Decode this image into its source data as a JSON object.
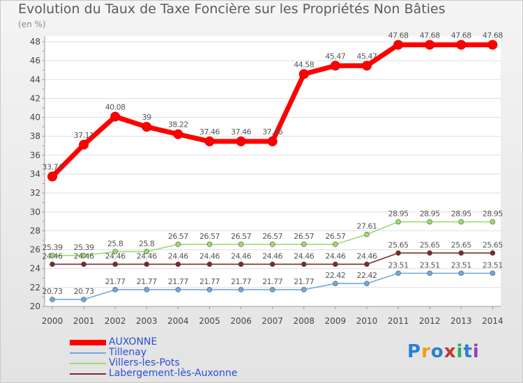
{
  "chart_data": {
    "type": "line",
    "title": "Evolution du Taux de Taxe Foncière sur les Propriétés Non Bâties",
    "ylabel": "(en %)",
    "xlabel": "",
    "ylim": [
      20,
      48
    ],
    "yticks": [
      20,
      22,
      24,
      26,
      28,
      30,
      32,
      34,
      36,
      38,
      40,
      42,
      44,
      46,
      48
    ],
    "categories": [
      "2000",
      "2001",
      "2002",
      "2003",
      "2004",
      "2005",
      "2006",
      "2007",
      "2008",
      "2009",
      "2010",
      "2011",
      "2012",
      "2013",
      "2014"
    ],
    "series": [
      {
        "name": "AUXONNE",
        "color": "#ff0000",
        "values": [
          33.74,
          37.11,
          40.08,
          39,
          38.22,
          37.46,
          37.46,
          37.46,
          44.58,
          45.47,
          45.47,
          47.68,
          47.68,
          47.68,
          47.68
        ],
        "labels": [
          "33.74",
          "37.11",
          "40.08",
          "39",
          "38.22",
          "37.46",
          "37.46",
          "37.46",
          "44.58",
          "45.47",
          "45.47",
          "47.68",
          "47.68",
          "47.68",
          "47.68"
        ]
      },
      {
        "name": "Tillenay",
        "color": "#6fa8dc",
        "values": [
          20.73,
          20.73,
          21.77,
          21.77,
          21.77,
          21.77,
          21.77,
          21.77,
          21.77,
          22.42,
          22.42,
          23.51,
          23.51,
          23.51,
          23.51
        ],
        "labels": [
          "20.73",
          "20.73",
          "21.77",
          "21.77",
          "21.77",
          "21.77",
          "21.77",
          "21.77",
          "21.77",
          "22.42",
          "22.42",
          "23.51",
          "23.51",
          "23.51",
          "23.51"
        ]
      },
      {
        "name": "Villers-les-Pots",
        "color": "#9bdc6a",
        "values": [
          25.39,
          25.39,
          25.8,
          25.8,
          26.57,
          26.57,
          26.57,
          26.57,
          26.57,
          26.57,
          27.61,
          28.95,
          28.95,
          28.95,
          28.95
        ],
        "labels": [
          "25.39",
          "25.39",
          "25.8",
          "25.8",
          "26.57",
          "26.57",
          "26.57",
          "26.57",
          "26.57",
          "26.57",
          "27.61",
          "28.95",
          "28.95",
          "28.95",
          "28.95"
        ]
      },
      {
        "name": "Labergement-lès-Auxonne",
        "color": "#7a2a2a",
        "values": [
          24.46,
          24.46,
          24.46,
          24.46,
          24.46,
          24.46,
          24.46,
          24.46,
          24.46,
          24.46,
          24.46,
          25.65,
          25.65,
          25.65,
          25.65
        ],
        "labels": [
          "24.46",
          "24.46",
          "24.46",
          "24.46",
          "24.46",
          "24.46",
          "24.46",
          "24.46",
          "24.46",
          "24.46",
          "24.46",
          "25.65",
          "25.65",
          "25.65",
          "25.65"
        ]
      }
    ]
  },
  "logo": {
    "text": "Proxiti",
    "letters": [
      "P",
      "r",
      "o",
      "x",
      "i",
      "t",
      "i"
    ],
    "colors": [
      "#2a7fd4",
      "#f39c12",
      "#2a7fd4",
      "#c0392b",
      "#27ae60",
      "#2a7fd4",
      "#8e44ad"
    ]
  }
}
